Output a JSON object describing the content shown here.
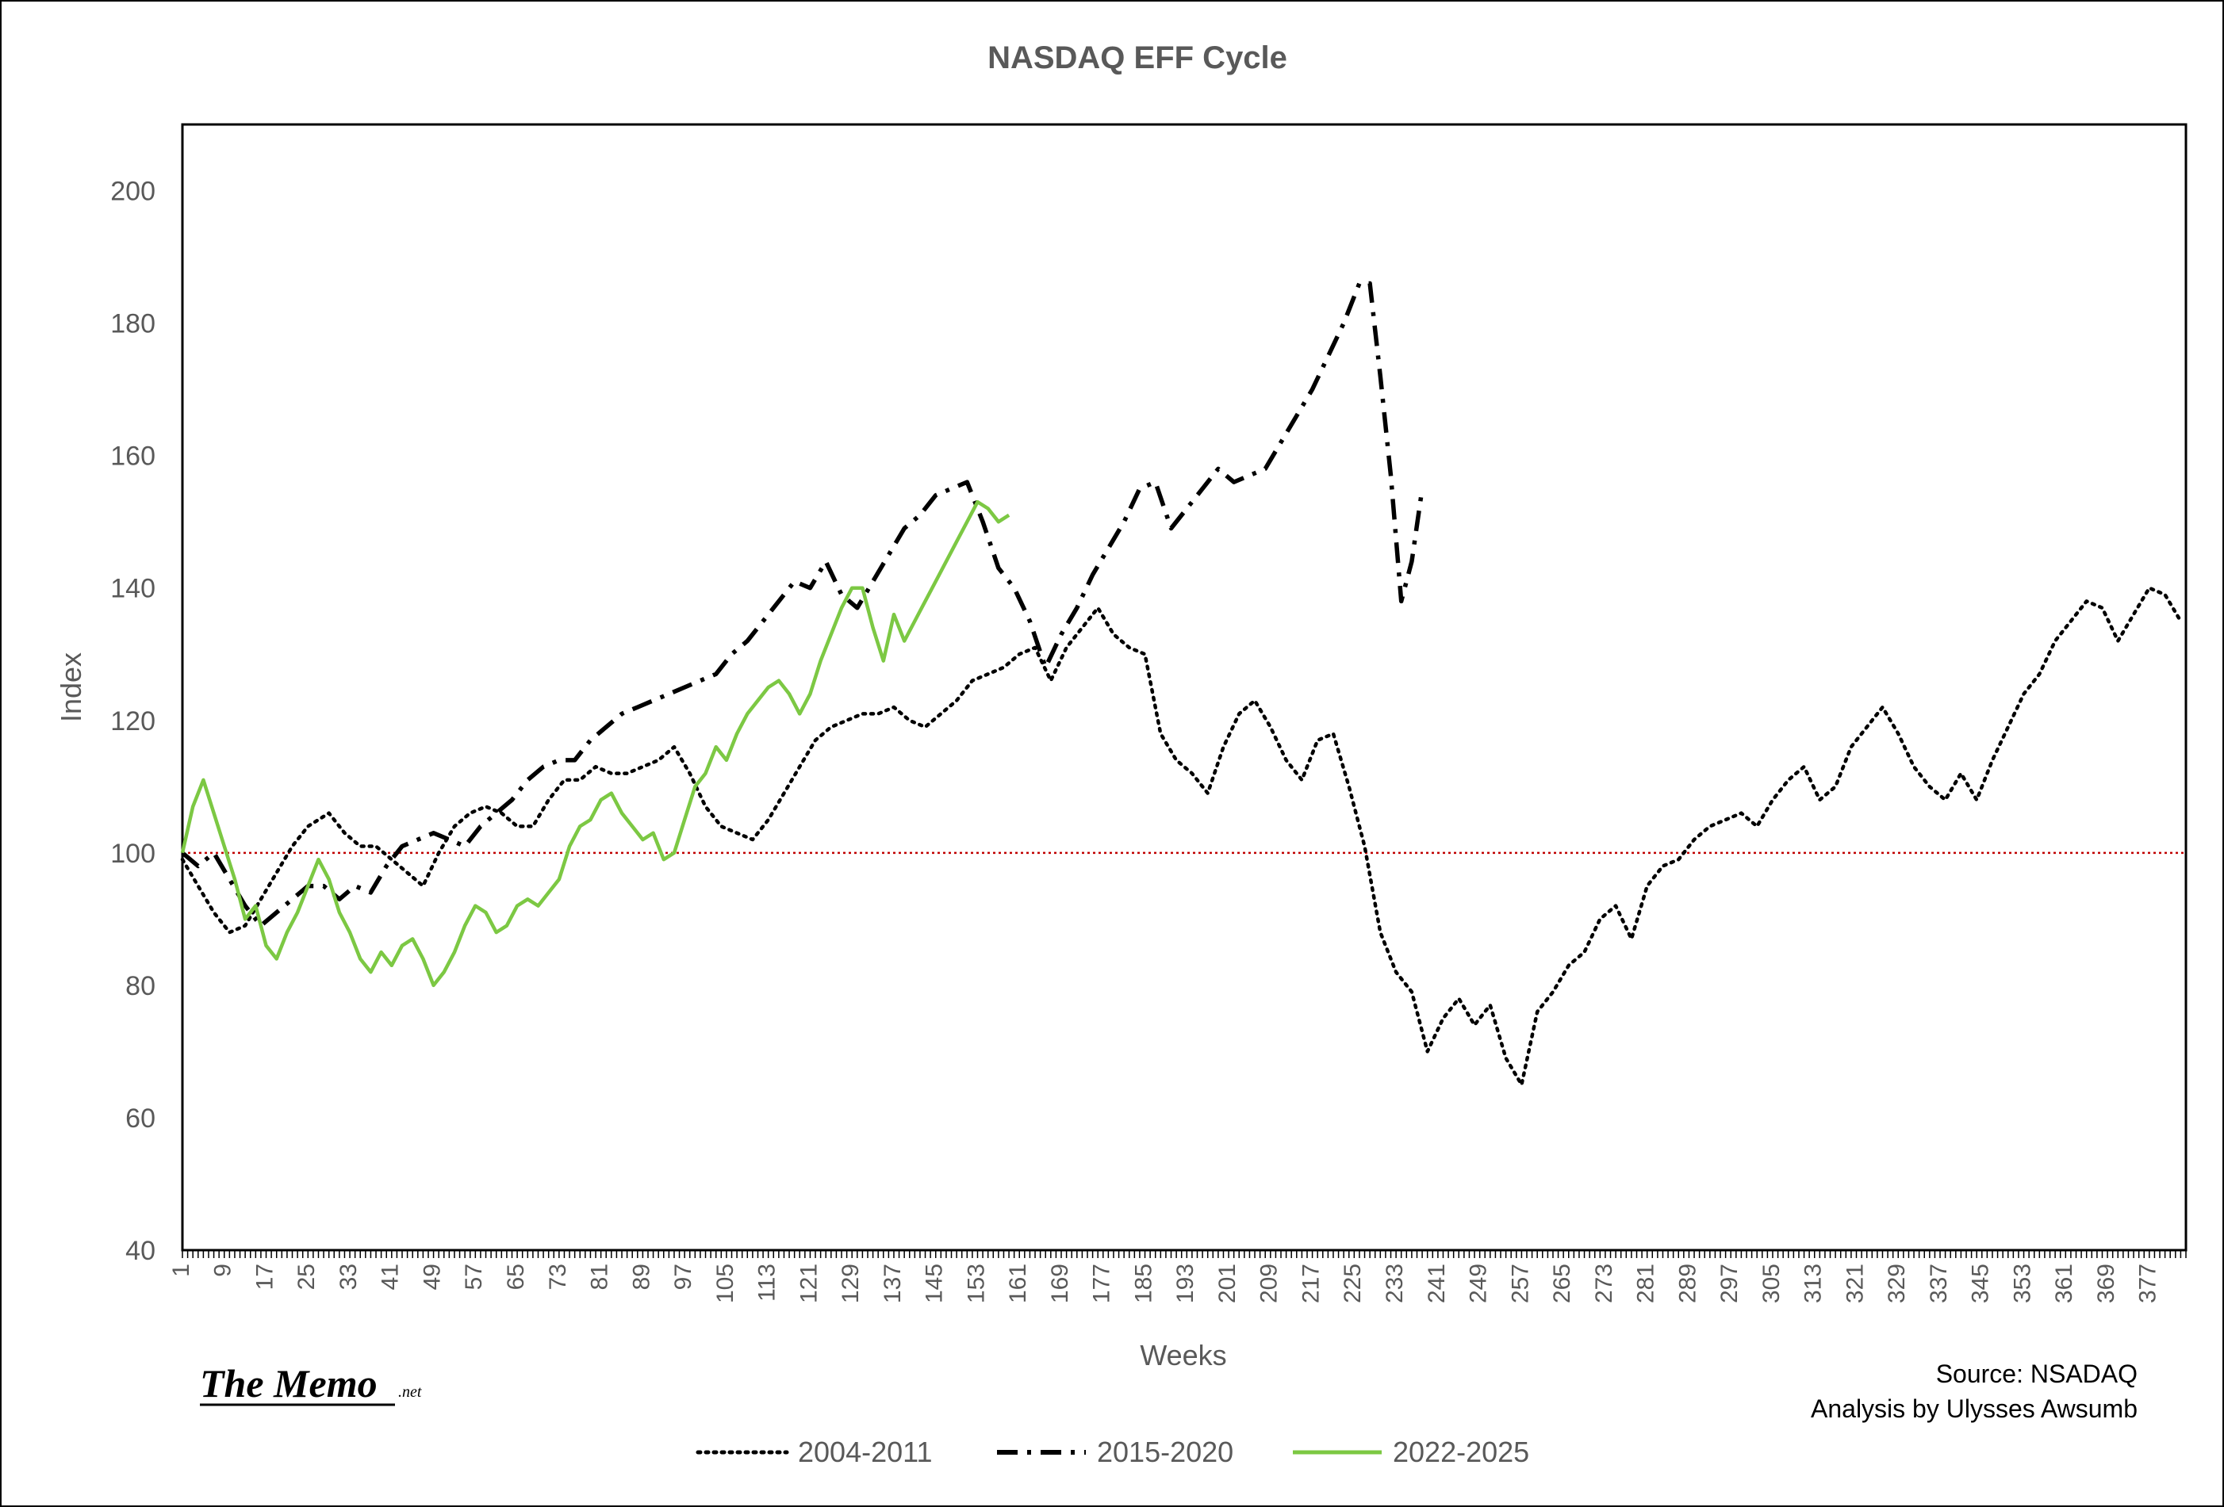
{
  "chart_data": {
    "type": "line",
    "title": "NASDAQ EFF Cycle",
    "xlabel": "Weeks",
    "ylabel": "Index",
    "ylim": [
      40,
      210
    ],
    "xlim": [
      1,
      384
    ],
    "yticks": [
      40,
      60,
      80,
      100,
      120,
      140,
      160,
      180,
      200
    ],
    "xticks": [
      1,
      9,
      17,
      25,
      33,
      41,
      49,
      57,
      65,
      73,
      81,
      89,
      97,
      105,
      113,
      121,
      129,
      137,
      145,
      153,
      161,
      169,
      177,
      185,
      193,
      201,
      209,
      217,
      225,
      233,
      241,
      249,
      257,
      265,
      273,
      281,
      289,
      297,
      305,
      313,
      321,
      329,
      337,
      345,
      353,
      361,
      369,
      377
    ],
    "grid": false,
    "legend_position": "bottom",
    "reference_line": {
      "y": 100,
      "color": "#c00000",
      "style": "dotted"
    },
    "series": [
      {
        "name": "2004-2011",
        "color": "#000000",
        "style": "dotted",
        "points": [
          [
            1,
            99
          ],
          [
            4,
            95
          ],
          [
            7,
            91
          ],
          [
            10,
            88
          ],
          [
            13,
            89
          ],
          [
            16,
            93
          ],
          [
            19,
            97
          ],
          [
            22,
            101
          ],
          [
            25,
            104
          ],
          [
            29,
            106
          ],
          [
            32,
            103
          ],
          [
            35,
            101
          ],
          [
            38,
            101
          ],
          [
            41,
            99
          ],
          [
            44,
            97
          ],
          [
            47,
            95
          ],
          [
            50,
            100
          ],
          [
            53,
            104
          ],
          [
            56,
            106
          ],
          [
            59,
            107
          ],
          [
            62,
            106
          ],
          [
            65,
            104
          ],
          [
            68,
            104
          ],
          [
            71,
            108
          ],
          [
            74,
            111
          ],
          [
            77,
            111
          ],
          [
            80,
            113
          ],
          [
            83,
            112
          ],
          [
            86,
            112
          ],
          [
            89,
            113
          ],
          [
            92,
            114
          ],
          [
            95,
            116
          ],
          [
            98,
            112
          ],
          [
            101,
            107
          ],
          [
            104,
            104
          ],
          [
            107,
            103
          ],
          [
            110,
            102
          ],
          [
            113,
            105
          ],
          [
            116,
            109
          ],
          [
            119,
            113
          ],
          [
            122,
            117
          ],
          [
            125,
            119
          ],
          [
            128,
            120
          ],
          [
            131,
            121
          ],
          [
            134,
            121
          ],
          [
            137,
            122
          ],
          [
            140,
            120
          ],
          [
            143,
            119
          ],
          [
            146,
            121
          ],
          [
            149,
            123
          ],
          [
            152,
            126
          ],
          [
            155,
            127
          ],
          [
            158,
            128
          ],
          [
            161,
            130
          ],
          [
            164,
            131
          ],
          [
            167,
            126
          ],
          [
            170,
            131
          ],
          [
            173,
            134
          ],
          [
            176,
            137
          ],
          [
            179,
            133
          ],
          [
            182,
            131
          ],
          [
            185,
            130
          ],
          [
            188,
            118
          ],
          [
            191,
            114
          ],
          [
            194,
            112
          ],
          [
            197,
            109
          ],
          [
            200,
            116
          ],
          [
            203,
            121
          ],
          [
            206,
            123
          ],
          [
            209,
            119
          ],
          [
            212,
            114
          ],
          [
            215,
            111
          ],
          [
            218,
            117
          ],
          [
            221,
            118
          ],
          [
            224,
            110
          ],
          [
            227,
            101
          ],
          [
            230,
            88
          ],
          [
            233,
            82
          ],
          [
            236,
            79
          ],
          [
            239,
            70
          ],
          [
            242,
            75
          ],
          [
            245,
            78
          ],
          [
            248,
            74
          ],
          [
            251,
            77
          ],
          [
            254,
            69
          ],
          [
            257,
            65
          ],
          [
            260,
            76
          ],
          [
            263,
            79
          ],
          [
            266,
            83
          ],
          [
            269,
            85
          ],
          [
            272,
            90
          ],
          [
            275,
            92
          ],
          [
            278,
            87
          ],
          [
            281,
            95
          ],
          [
            284,
            98
          ],
          [
            287,
            99
          ],
          [
            290,
            102
          ],
          [
            293,
            104
          ],
          [
            296,
            105
          ],
          [
            299,
            106
          ],
          [
            302,
            104
          ],
          [
            305,
            108
          ],
          [
            308,
            111
          ],
          [
            311,
            113
          ],
          [
            314,
            108
          ],
          [
            317,
            110
          ],
          [
            320,
            116
          ],
          [
            323,
            119
          ],
          [
            326,
            122
          ],
          [
            329,
            118
          ],
          [
            332,
            113
          ],
          [
            335,
            110
          ],
          [
            338,
            108
          ],
          [
            341,
            112
          ],
          [
            344,
            108
          ],
          [
            347,
            114
          ],
          [
            350,
            119
          ],
          [
            353,
            124
          ],
          [
            356,
            127
          ],
          [
            359,
            132
          ],
          [
            362,
            135
          ],
          [
            365,
            138
          ],
          [
            368,
            137
          ],
          [
            371,
            132
          ],
          [
            374,
            136
          ],
          [
            377,
            140
          ],
          [
            380,
            139
          ],
          [
            383,
            135
          ]
        ]
      },
      {
        "name": "2015-2020",
        "color": "#000000",
        "style": "dash-dot",
        "points": [
          [
            1,
            100
          ],
          [
            4,
            98
          ],
          [
            7,
            100
          ],
          [
            10,
            96
          ],
          [
            13,
            92
          ],
          [
            16,
            89
          ],
          [
            19,
            91
          ],
          [
            22,
            93
          ],
          [
            25,
            95
          ],
          [
            28,
            95
          ],
          [
            31,
            93
          ],
          [
            34,
            95
          ],
          [
            37,
            94
          ],
          [
            40,
            98
          ],
          [
            43,
            101
          ],
          [
            46,
            102
          ],
          [
            49,
            103
          ],
          [
            52,
            102
          ],
          [
            55,
            101
          ],
          [
            58,
            104
          ],
          [
            61,
            106
          ],
          [
            64,
            108
          ],
          [
            67,
            111
          ],
          [
            70,
            113
          ],
          [
            73,
            114
          ],
          [
            76,
            114
          ],
          [
            79,
            117
          ],
          [
            82,
            119
          ],
          [
            85,
            121
          ],
          [
            88,
            122
          ],
          [
            91,
            123
          ],
          [
            94,
            124
          ],
          [
            97,
            125
          ],
          [
            100,
            126
          ],
          [
            103,
            127
          ],
          [
            106,
            130
          ],
          [
            109,
            132
          ],
          [
            112,
            135
          ],
          [
            115,
            138
          ],
          [
            118,
            141
          ],
          [
            121,
            140
          ],
          [
            124,
            144
          ],
          [
            127,
            139
          ],
          [
            130,
            137
          ],
          [
            133,
            141
          ],
          [
            136,
            145
          ],
          [
            139,
            149
          ],
          [
            142,
            151
          ],
          [
            145,
            154
          ],
          [
            148,
            155
          ],
          [
            151,
            156
          ],
          [
            154,
            150
          ],
          [
            157,
            143
          ],
          [
            160,
            140
          ],
          [
            163,
            135
          ],
          [
            166,
            128
          ],
          [
            169,
            133
          ],
          [
            172,
            137
          ],
          [
            175,
            142
          ],
          [
            178,
            146
          ],
          [
            181,
            150
          ],
          [
            184,
            155
          ],
          [
            187,
            156
          ],
          [
            190,
            149
          ],
          [
            193,
            152
          ],
          [
            196,
            155
          ],
          [
            199,
            158
          ],
          [
            202,
            156
          ],
          [
            205,
            157
          ],
          [
            208,
            158
          ],
          [
            211,
            162
          ],
          [
            214,
            166
          ],
          [
            217,
            170
          ],
          [
            220,
            175
          ],
          [
            223,
            180
          ],
          [
            226,
            186
          ],
          [
            228,
            186
          ],
          [
            230,
            172
          ],
          [
            232,
            157
          ],
          [
            234,
            138
          ],
          [
            236,
            144
          ],
          [
            238,
            155
          ]
        ]
      },
      {
        "name": "2022-2025",
        "color": "#7cc843",
        "style": "solid",
        "points": [
          [
            1,
            100
          ],
          [
            3,
            107
          ],
          [
            5,
            111
          ],
          [
            7,
            106
          ],
          [
            9,
            101
          ],
          [
            11,
            96
          ],
          [
            13,
            90
          ],
          [
            15,
            92
          ],
          [
            17,
            86
          ],
          [
            19,
            84
          ],
          [
            21,
            88
          ],
          [
            23,
            91
          ],
          [
            25,
            95
          ],
          [
            27,
            99
          ],
          [
            29,
            96
          ],
          [
            31,
            91
          ],
          [
            33,
            88
          ],
          [
            35,
            84
          ],
          [
            37,
            82
          ],
          [
            39,
            85
          ],
          [
            41,
            83
          ],
          [
            43,
            86
          ],
          [
            45,
            87
          ],
          [
            47,
            84
          ],
          [
            49,
            80
          ],
          [
            51,
            82
          ],
          [
            53,
            85
          ],
          [
            55,
            89
          ],
          [
            57,
            92
          ],
          [
            59,
            91
          ],
          [
            61,
            88
          ],
          [
            63,
            89
          ],
          [
            65,
            92
          ],
          [
            67,
            93
          ],
          [
            69,
            92
          ],
          [
            71,
            94
          ],
          [
            73,
            96
          ],
          [
            75,
            101
          ],
          [
            77,
            104
          ],
          [
            79,
            105
          ],
          [
            81,
            108
          ],
          [
            83,
            109
          ],
          [
            85,
            106
          ],
          [
            87,
            104
          ],
          [
            89,
            102
          ],
          [
            91,
            103
          ],
          [
            93,
            99
          ],
          [
            95,
            100
          ],
          [
            97,
            105
          ],
          [
            99,
            110
          ],
          [
            101,
            112
          ],
          [
            103,
            116
          ],
          [
            105,
            114
          ],
          [
            107,
            118
          ],
          [
            109,
            121
          ],
          [
            111,
            123
          ],
          [
            113,
            125
          ],
          [
            115,
            126
          ],
          [
            117,
            124
          ],
          [
            119,
            121
          ],
          [
            121,
            124
          ],
          [
            123,
            129
          ],
          [
            125,
            133
          ],
          [
            127,
            137
          ],
          [
            129,
            140
          ],
          [
            131,
            140
          ],
          [
            133,
            134
          ],
          [
            135,
            129
          ],
          [
            137,
            136
          ],
          [
            139,
            132
          ],
          [
            141,
            135
          ],
          [
            143,
            138
          ],
          [
            145,
            141
          ],
          [
            147,
            144
          ],
          [
            149,
            147
          ],
          [
            151,
            150
          ],
          [
            153,
            153
          ],
          [
            155,
            152
          ],
          [
            157,
            150
          ],
          [
            159,
            151
          ]
        ]
      }
    ]
  },
  "source": [
    "Source: NSADAQ",
    "Analysis by Ulysses Awsumb"
  ],
  "brand": {
    "name": "The Memo",
    "suffix": ".net"
  }
}
